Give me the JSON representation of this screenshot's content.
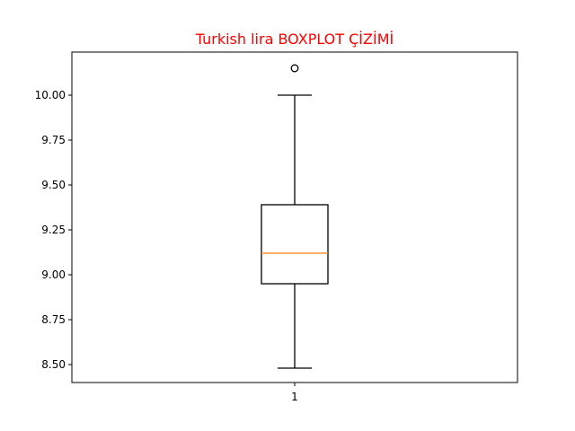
{
  "chart_data": {
    "type": "boxplot",
    "title": "Turkish lira BOXPLOT ÇİZİMİ",
    "title_color": "#ff0000",
    "xlabel": "",
    "ylabel": "",
    "categories": [
      "1"
    ],
    "series": [
      {
        "category": "1",
        "whisker_low": 8.48,
        "q1": 8.95,
        "median": 9.12,
        "q3": 9.39,
        "whisker_high": 10.0,
        "outliers": [
          10.15
        ]
      }
    ],
    "ylim": [
      8.4,
      10.24
    ],
    "yticks": [
      8.5,
      8.75,
      9.0,
      9.25,
      9.5,
      9.75,
      10.0
    ],
    "ytick_labels": [
      "8.50",
      "8.75",
      "9.00",
      "9.25",
      "9.50",
      "9.75",
      "10.00"
    ],
    "grid": false,
    "colors": {
      "box": "#000000",
      "median": "#ff7f0e",
      "title": "#ff0000"
    }
  }
}
